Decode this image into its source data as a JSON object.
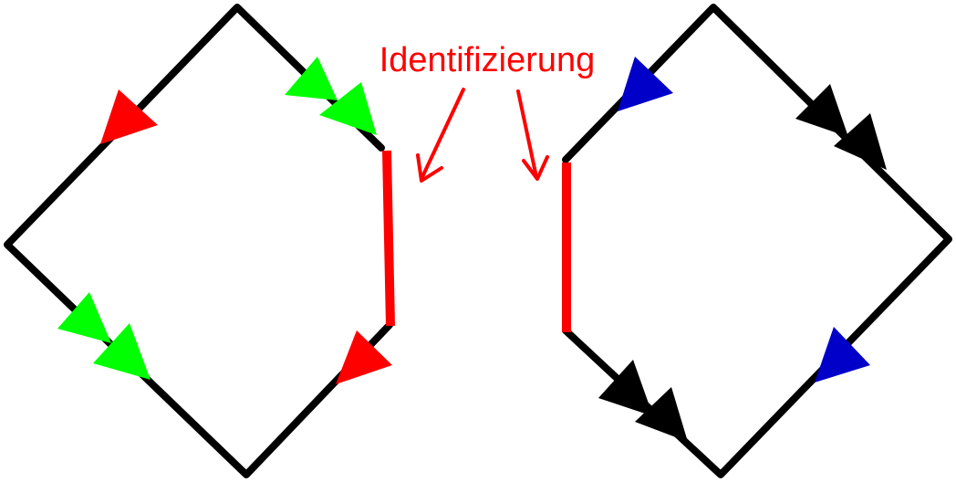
{
  "diagram": {
    "label": "Identifizierung",
    "colors": {
      "edge": "#000000",
      "glued_edge": "#ff0000",
      "label": "#ff0000",
      "arrow_red": "#ff0000",
      "arrow_green": "#00ff00",
      "arrow_blue": "#0000c8",
      "arrow_black": "#000000"
    }
  }
}
